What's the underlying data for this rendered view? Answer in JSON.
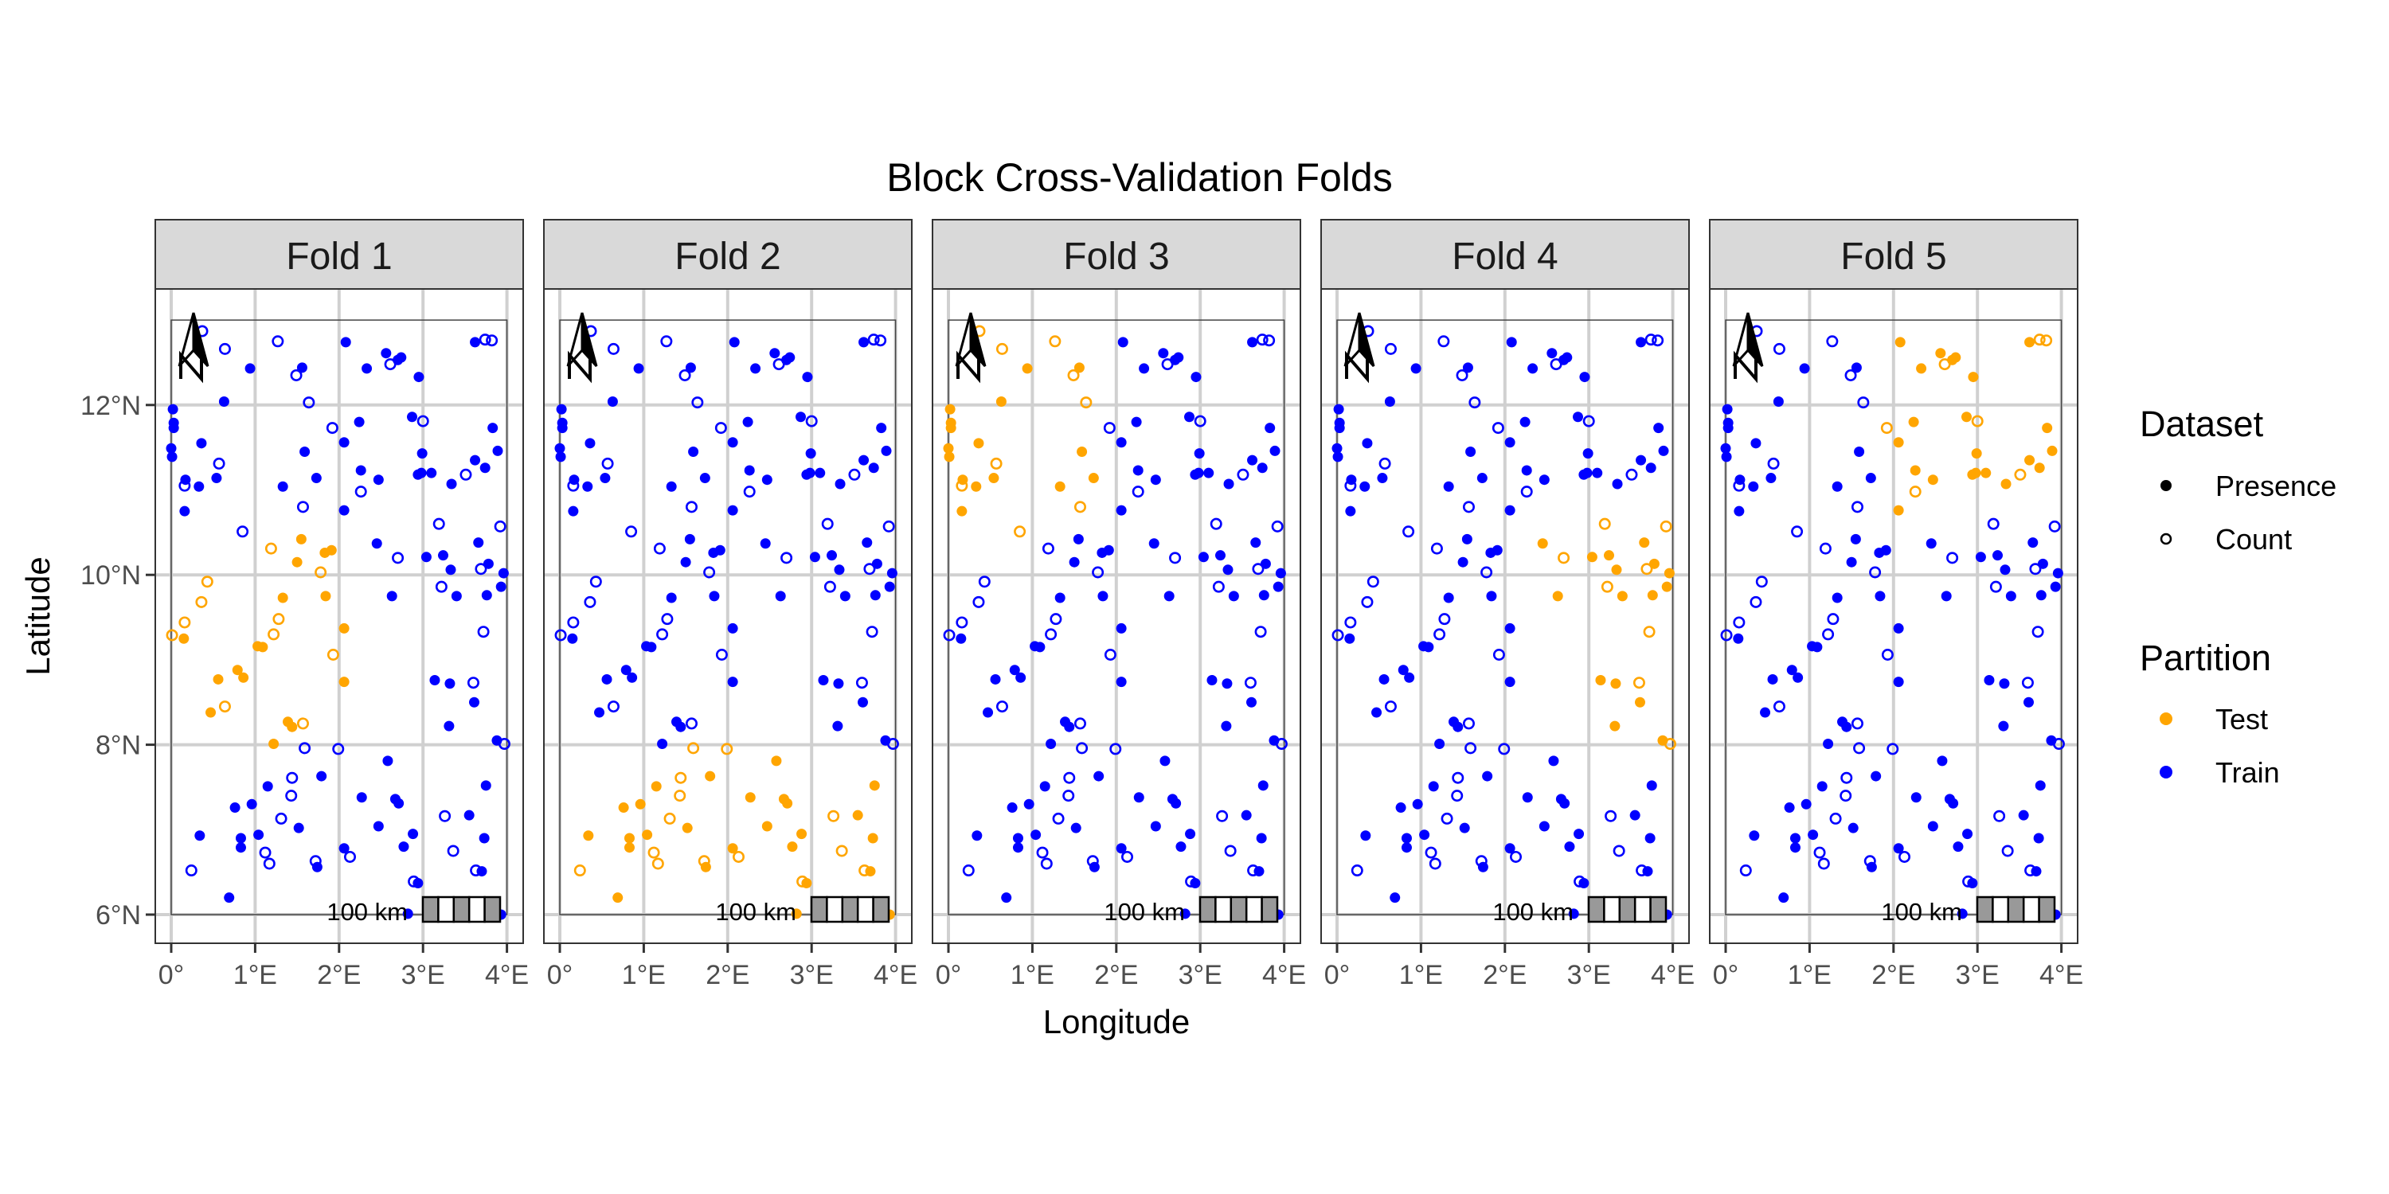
{
  "chart_data": {
    "type": "scatter",
    "title": "Block Cross-Validation Folds",
    "xlabel": "Longitude",
    "ylabel": "Latitude",
    "xlim": [
      -0.19,
      4.19
    ],
    "ylim": [
      5.66,
      13.41
    ],
    "x_ticks": [
      0,
      1,
      2,
      3,
      4
    ],
    "x_tick_labels": [
      "0°",
      "1°E",
      "2°E",
      "3°E",
      "4°E"
    ],
    "y_ticks": [
      6,
      8,
      10,
      12
    ],
    "y_tick_labels": [
      "6°N",
      "8°N",
      "10°N",
      "12°N"
    ],
    "grid": true,
    "facets": [
      "Fold 1",
      "Fold 2",
      "Fold 3",
      "Fold 4",
      "Fold 5"
    ],
    "scale_bar_label": "100 km",
    "north_arrow_label": "N",
    "legend_position": "right",
    "legends": [
      {
        "title": "Dataset",
        "items": [
          {
            "label": "Presence",
            "shape": "filled-circle"
          },
          {
            "label": "Count",
            "shape": "open-circle"
          }
        ]
      },
      {
        "title": "Partition",
        "items": [
          {
            "label": "Test",
            "color": "#FFA500"
          },
          {
            "label": "Train",
            "color": "#0000FF"
          }
        ]
      }
    ],
    "colors": {
      "Test": "#FFA500",
      "Train": "#0000FF"
    },
    "points": [
      {
        "lon": 0.37,
        "lat": 12.87,
        "dataset": "Count",
        "test_fold": 3
      },
      {
        "lon": 0.64,
        "lat": 12.66,
        "dataset": "Count",
        "test_fold": 3
      },
      {
        "lon": 1.27,
        "lat": 12.75,
        "dataset": "Count",
        "test_fold": 3
      },
      {
        "lon": 0.94,
        "lat": 12.43,
        "dataset": "Presence",
        "test_fold": 3
      },
      {
        "lon": 1.56,
        "lat": 12.44,
        "dataset": "Presence",
        "test_fold": 3
      },
      {
        "lon": 1.49,
        "lat": 12.35,
        "dataset": "Count",
        "test_fold": 3
      },
      {
        "lon": 2.08,
        "lat": 12.74,
        "dataset": "Presence",
        "test_fold": 5
      },
      {
        "lon": 2.56,
        "lat": 12.61,
        "dataset": "Presence",
        "test_fold": 5
      },
      {
        "lon": 2.74,
        "lat": 12.56,
        "dataset": "Presence",
        "test_fold": 5
      },
      {
        "lon": 2.7,
        "lat": 12.53,
        "dataset": "Presence",
        "test_fold": 5
      },
      {
        "lon": 2.61,
        "lat": 12.48,
        "dataset": "Count",
        "test_fold": 5
      },
      {
        "lon": 2.33,
        "lat": 12.43,
        "dataset": "Presence",
        "test_fold": 5
      },
      {
        "lon": 2.95,
        "lat": 12.33,
        "dataset": "Presence",
        "test_fold": 5
      },
      {
        "lon": 3.62,
        "lat": 12.74,
        "dataset": "Presence",
        "test_fold": 5
      },
      {
        "lon": 3.74,
        "lat": 12.77,
        "dataset": "Count",
        "test_fold": 5
      },
      {
        "lon": 3.82,
        "lat": 12.76,
        "dataset": "Count",
        "test_fold": 5
      },
      {
        "lon": 0.63,
        "lat": 12.04,
        "dataset": "Presence",
        "test_fold": 3
      },
      {
        "lon": 1.64,
        "lat": 12.03,
        "dataset": "Count",
        "test_fold": 3
      },
      {
        "lon": 0.02,
        "lat": 11.95,
        "dataset": "Presence",
        "test_fold": 3
      },
      {
        "lon": 0.03,
        "lat": 11.79,
        "dataset": "Presence",
        "test_fold": 3
      },
      {
        "lon": 0.03,
        "lat": 11.73,
        "dataset": "Presence",
        "test_fold": 3
      },
      {
        "lon": 0.36,
        "lat": 11.55,
        "dataset": "Presence",
        "test_fold": 3
      },
      {
        "lon": 0.0,
        "lat": 11.49,
        "dataset": "Presence",
        "test_fold": 3
      },
      {
        "lon": 0.01,
        "lat": 11.39,
        "dataset": "Presence",
        "test_fold": 3
      },
      {
        "lon": 0.57,
        "lat": 11.31,
        "dataset": "Count",
        "test_fold": 3
      },
      {
        "lon": 0.17,
        "lat": 11.12,
        "dataset": "Presence",
        "test_fold": 3
      },
      {
        "lon": 0.16,
        "lat": 11.05,
        "dataset": "Count",
        "test_fold": 3
      },
      {
        "lon": 0.33,
        "lat": 11.04,
        "dataset": "Presence",
        "test_fold": 3
      },
      {
        "lon": 0.54,
        "lat": 11.14,
        "dataset": "Presence",
        "test_fold": 3
      },
      {
        "lon": 0.16,
        "lat": 10.75,
        "dataset": "Presence",
        "test_fold": 3
      },
      {
        "lon": 0.85,
        "lat": 10.51,
        "dataset": "Count",
        "test_fold": 3
      },
      {
        "lon": 1.92,
        "lat": 11.73,
        "dataset": "Count",
        "test_fold": 5
      },
      {
        "lon": 2.24,
        "lat": 11.8,
        "dataset": "Presence",
        "test_fold": 5
      },
      {
        "lon": 2.06,
        "lat": 11.56,
        "dataset": "Presence",
        "test_fold": 5
      },
      {
        "lon": 1.59,
        "lat": 11.45,
        "dataset": "Presence",
        "test_fold": 3
      },
      {
        "lon": 1.73,
        "lat": 11.14,
        "dataset": "Presence",
        "test_fold": 3
      },
      {
        "lon": 1.33,
        "lat": 11.04,
        "dataset": "Presence",
        "test_fold": 3
      },
      {
        "lon": 2.26,
        "lat": 11.23,
        "dataset": "Presence",
        "test_fold": 5
      },
      {
        "lon": 2.47,
        "lat": 11.12,
        "dataset": "Presence",
        "test_fold": 5
      },
      {
        "lon": 2.26,
        "lat": 10.98,
        "dataset": "Count",
        "test_fold": 5
      },
      {
        "lon": 1.57,
        "lat": 10.8,
        "dataset": "Count",
        "test_fold": 3
      },
      {
        "lon": 2.06,
        "lat": 10.76,
        "dataset": "Presence",
        "test_fold": 5
      },
      {
        "lon": 2.87,
        "lat": 11.86,
        "dataset": "Presence",
        "test_fold": 5
      },
      {
        "lon": 3.0,
        "lat": 11.81,
        "dataset": "Count",
        "test_fold": 5
      },
      {
        "lon": 3.83,
        "lat": 11.73,
        "dataset": "Presence",
        "test_fold": 5
      },
      {
        "lon": 2.99,
        "lat": 11.43,
        "dataset": "Presence",
        "test_fold": 5
      },
      {
        "lon": 3.89,
        "lat": 11.46,
        "dataset": "Presence",
        "test_fold": 5
      },
      {
        "lon": 3.62,
        "lat": 11.35,
        "dataset": "Presence",
        "test_fold": 5
      },
      {
        "lon": 3.74,
        "lat": 11.26,
        "dataset": "Presence",
        "test_fold": 5
      },
      {
        "lon": 2.94,
        "lat": 11.18,
        "dataset": "Presence",
        "test_fold": 5
      },
      {
        "lon": 2.98,
        "lat": 11.2,
        "dataset": "Presence",
        "test_fold": 5
      },
      {
        "lon": 3.1,
        "lat": 11.2,
        "dataset": "Presence",
        "test_fold": 5
      },
      {
        "lon": 3.51,
        "lat": 11.18,
        "dataset": "Count",
        "test_fold": 5
      },
      {
        "lon": 3.34,
        "lat": 11.07,
        "dataset": "Presence",
        "test_fold": 5
      },
      {
        "lon": 3.19,
        "lat": 10.6,
        "dataset": "Count",
        "test_fold": 4
      },
      {
        "lon": 3.92,
        "lat": 10.57,
        "dataset": "Count",
        "test_fold": 4
      },
      {
        "lon": 3.66,
        "lat": 10.38,
        "dataset": "Presence",
        "test_fold": 4
      },
      {
        "lon": 2.45,
        "lat": 10.37,
        "dataset": "Presence",
        "test_fold": 4
      },
      {
        "lon": 2.7,
        "lat": 10.2,
        "dataset": "Count",
        "test_fold": 4
      },
      {
        "lon": 3.04,
        "lat": 10.21,
        "dataset": "Presence",
        "test_fold": 4
      },
      {
        "lon": 3.24,
        "lat": 10.23,
        "dataset": "Presence",
        "test_fold": 4
      },
      {
        "lon": 3.33,
        "lat": 10.06,
        "dataset": "Presence",
        "test_fold": 4
      },
      {
        "lon": 3.69,
        "lat": 10.07,
        "dataset": "Count",
        "test_fold": 4
      },
      {
        "lon": 3.78,
        "lat": 10.13,
        "dataset": "Presence",
        "test_fold": 4
      },
      {
        "lon": 3.96,
        "lat": 10.02,
        "dataset": "Presence",
        "test_fold": 4
      },
      {
        "lon": 3.22,
        "lat": 9.86,
        "dataset": "Count",
        "test_fold": 4
      },
      {
        "lon": 3.4,
        "lat": 9.75,
        "dataset": "Presence",
        "test_fold": 4
      },
      {
        "lon": 3.76,
        "lat": 9.76,
        "dataset": "Presence",
        "test_fold": 4
      },
      {
        "lon": 3.93,
        "lat": 9.86,
        "dataset": "Presence",
        "test_fold": 4
      },
      {
        "lon": 2.63,
        "lat": 9.75,
        "dataset": "Presence",
        "test_fold": 4
      },
      {
        "lon": 3.72,
        "lat": 9.33,
        "dataset": "Count",
        "test_fold": 4
      },
      {
        "lon": 1.55,
        "lat": 10.42,
        "dataset": "Presence",
        "test_fold": 1
      },
      {
        "lon": 1.19,
        "lat": 10.31,
        "dataset": "Count",
        "test_fold": 1
      },
      {
        "lon": 1.5,
        "lat": 10.15,
        "dataset": "Presence",
        "test_fold": 1
      },
      {
        "lon": 1.83,
        "lat": 10.26,
        "dataset": "Presence",
        "test_fold": 1
      },
      {
        "lon": 1.91,
        "lat": 10.29,
        "dataset": "Presence",
        "test_fold": 1
      },
      {
        "lon": 1.78,
        "lat": 10.03,
        "dataset": "Count",
        "test_fold": 1
      },
      {
        "lon": 0.43,
        "lat": 9.92,
        "dataset": "Count",
        "test_fold": 1
      },
      {
        "lon": 0.36,
        "lat": 9.68,
        "dataset": "Count",
        "test_fold": 1
      },
      {
        "lon": 1.33,
        "lat": 9.73,
        "dataset": "Presence",
        "test_fold": 1
      },
      {
        "lon": 1.84,
        "lat": 9.75,
        "dataset": "Presence",
        "test_fold": 1
      },
      {
        "lon": 1.28,
        "lat": 9.48,
        "dataset": "Count",
        "test_fold": 1
      },
      {
        "lon": 0.16,
        "lat": 9.44,
        "dataset": "Count",
        "test_fold": 1
      },
      {
        "lon": 0.01,
        "lat": 9.29,
        "dataset": "Count",
        "test_fold": 1
      },
      {
        "lon": 0.15,
        "lat": 9.25,
        "dataset": "Presence",
        "test_fold": 1
      },
      {
        "lon": 2.06,
        "lat": 9.37,
        "dataset": "Presence",
        "test_fold": 1
      },
      {
        "lon": 1.22,
        "lat": 9.3,
        "dataset": "Count",
        "test_fold": 1
      },
      {
        "lon": 1.03,
        "lat": 9.16,
        "dataset": "Presence",
        "test_fold": 1
      },
      {
        "lon": 1.09,
        "lat": 9.15,
        "dataset": "Presence",
        "test_fold": 1
      },
      {
        "lon": 1.93,
        "lat": 9.06,
        "dataset": "Count",
        "test_fold": 1
      },
      {
        "lon": 0.79,
        "lat": 8.88,
        "dataset": "Presence",
        "test_fold": 1
      },
      {
        "lon": 0.86,
        "lat": 8.79,
        "dataset": "Presence",
        "test_fold": 1
      },
      {
        "lon": 0.56,
        "lat": 8.77,
        "dataset": "Presence",
        "test_fold": 1
      },
      {
        "lon": 0.64,
        "lat": 8.45,
        "dataset": "Count",
        "test_fold": 1
      },
      {
        "lon": 0.47,
        "lat": 8.38,
        "dataset": "Presence",
        "test_fold": 1
      },
      {
        "lon": 2.06,
        "lat": 8.74,
        "dataset": "Presence",
        "test_fold": 1
      },
      {
        "lon": 1.39,
        "lat": 8.27,
        "dataset": "Presence",
        "test_fold": 1
      },
      {
        "lon": 1.44,
        "lat": 8.21,
        "dataset": "Presence",
        "test_fold": 1
      },
      {
        "lon": 1.57,
        "lat": 8.25,
        "dataset": "Count",
        "test_fold": 1
      },
      {
        "lon": 1.22,
        "lat": 8.01,
        "dataset": "Presence",
        "test_fold": 1
      },
      {
        "lon": 3.14,
        "lat": 8.76,
        "dataset": "Presence",
        "test_fold": 4
      },
      {
        "lon": 3.32,
        "lat": 8.72,
        "dataset": "Presence",
        "test_fold": 4
      },
      {
        "lon": 3.6,
        "lat": 8.73,
        "dataset": "Count",
        "test_fold": 4
      },
      {
        "lon": 3.61,
        "lat": 8.5,
        "dataset": "Presence",
        "test_fold": 4
      },
      {
        "lon": 3.31,
        "lat": 8.22,
        "dataset": "Presence",
        "test_fold": 4
      },
      {
        "lon": 3.88,
        "lat": 8.05,
        "dataset": "Presence",
        "test_fold": 4
      },
      {
        "lon": 3.97,
        "lat": 8.01,
        "dataset": "Count",
        "test_fold": 4
      },
      {
        "lon": 1.59,
        "lat": 7.96,
        "dataset": "Count",
        "test_fold": 2
      },
      {
        "lon": 1.99,
        "lat": 7.95,
        "dataset": "Count",
        "test_fold": 2
      },
      {
        "lon": 2.58,
        "lat": 7.81,
        "dataset": "Presence",
        "test_fold": 2
      },
      {
        "lon": 1.79,
        "lat": 7.63,
        "dataset": "Presence",
        "test_fold": 2
      },
      {
        "lon": 1.44,
        "lat": 7.61,
        "dataset": "Count",
        "test_fold": 2
      },
      {
        "lon": 1.15,
        "lat": 7.51,
        "dataset": "Presence",
        "test_fold": 2
      },
      {
        "lon": 1.43,
        "lat": 7.4,
        "dataset": "Count",
        "test_fold": 2
      },
      {
        "lon": 3.75,
        "lat": 7.52,
        "dataset": "Presence",
        "test_fold": 2
      },
      {
        "lon": 2.27,
        "lat": 7.38,
        "dataset": "Presence",
        "test_fold": 2
      },
      {
        "lon": 2.67,
        "lat": 7.36,
        "dataset": "Presence",
        "test_fold": 2
      },
      {
        "lon": 2.71,
        "lat": 7.31,
        "dataset": "Presence",
        "test_fold": 2
      },
      {
        "lon": 0.96,
        "lat": 7.3,
        "dataset": "Presence",
        "test_fold": 2
      },
      {
        "lon": 0.76,
        "lat": 7.26,
        "dataset": "Presence",
        "test_fold": 2
      },
      {
        "lon": 1.31,
        "lat": 7.13,
        "dataset": "Count",
        "test_fold": 2
      },
      {
        "lon": 1.52,
        "lat": 7.02,
        "dataset": "Presence",
        "test_fold": 2
      },
      {
        "lon": 3.55,
        "lat": 7.17,
        "dataset": "Presence",
        "test_fold": 2
      },
      {
        "lon": 3.26,
        "lat": 7.16,
        "dataset": "Count",
        "test_fold": 2
      },
      {
        "lon": 2.47,
        "lat": 7.04,
        "dataset": "Presence",
        "test_fold": 2
      },
      {
        "lon": 2.88,
        "lat": 6.95,
        "dataset": "Presence",
        "test_fold": 2
      },
      {
        "lon": 3.73,
        "lat": 6.9,
        "dataset": "Presence",
        "test_fold": 2
      },
      {
        "lon": 0.34,
        "lat": 6.93,
        "dataset": "Presence",
        "test_fold": 2
      },
      {
        "lon": 0.83,
        "lat": 6.9,
        "dataset": "Presence",
        "test_fold": 2
      },
      {
        "lon": 0.83,
        "lat": 6.79,
        "dataset": "Presence",
        "test_fold": 2
      },
      {
        "lon": 1.04,
        "lat": 6.94,
        "dataset": "Presence",
        "test_fold": 2
      },
      {
        "lon": 2.77,
        "lat": 6.8,
        "dataset": "Presence",
        "test_fold": 2
      },
      {
        "lon": 3.36,
        "lat": 6.75,
        "dataset": "Count",
        "test_fold": 2
      },
      {
        "lon": 2.06,
        "lat": 6.78,
        "dataset": "Presence",
        "test_fold": 2
      },
      {
        "lon": 2.13,
        "lat": 6.68,
        "dataset": "Count",
        "test_fold": 2
      },
      {
        "lon": 1.12,
        "lat": 6.73,
        "dataset": "Count",
        "test_fold": 2
      },
      {
        "lon": 1.17,
        "lat": 6.6,
        "dataset": "Count",
        "test_fold": 2
      },
      {
        "lon": 1.72,
        "lat": 6.63,
        "dataset": "Count",
        "test_fold": 2
      },
      {
        "lon": 1.74,
        "lat": 6.56,
        "dataset": "Presence",
        "test_fold": 2
      },
      {
        "lon": 3.63,
        "lat": 6.52,
        "dataset": "Count",
        "test_fold": 2
      },
      {
        "lon": 3.7,
        "lat": 6.51,
        "dataset": "Presence",
        "test_fold": 2
      },
      {
        "lon": 0.24,
        "lat": 6.52,
        "dataset": "Count",
        "test_fold": 2
      },
      {
        "lon": 2.89,
        "lat": 6.39,
        "dataset": "Count",
        "test_fold": 2
      },
      {
        "lon": 2.94,
        "lat": 6.37,
        "dataset": "Presence",
        "test_fold": 2
      },
      {
        "lon": 0.69,
        "lat": 6.2,
        "dataset": "Presence",
        "test_fold": 2
      },
      {
        "lon": 2.82,
        "lat": 6.01,
        "dataset": "Presence",
        "test_fold": 2
      },
      {
        "lon": 3.93,
        "lat": 6.0,
        "dataset": "Presence",
        "test_fold": 2
      }
    ]
  }
}
